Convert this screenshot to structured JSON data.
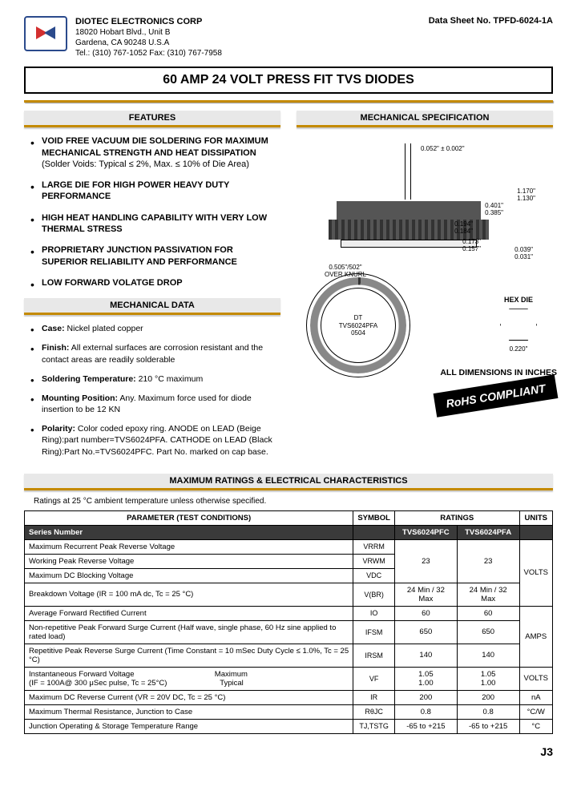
{
  "company": {
    "name": "DIOTEC ELECTRONICS CORP",
    "addr1": "18020 Hobart Blvd., Unit B",
    "addr2": "Gardena, CA 90248 U.S.A",
    "contact": "Tel.: (310) 767-1052  Fax: (310) 767-7958"
  },
  "sheet_no": "Data Sheet No. TPFD-6024-1A",
  "title": "60 AMP 24 VOLT PRESS FIT TVS DIODES",
  "section_features": "FEATURES",
  "section_mechspec": "MECHANICAL SPECIFICATION",
  "section_mechdata": "MECHANICAL DATA",
  "section_maxratings": "MAXIMUM RATINGS & ELECTRICAL CHARACTERISTICS",
  "features": [
    {
      "title": "VOID FREE VACUUM DIE SOLDERING FOR MAXIMUM MECHANICAL STRENGTH AND HEAT DISSIPATION",
      "sub": "(Solder Voids: Typical ≤ 2%, Max. ≤ 10% of Die Area)"
    },
    {
      "title": "LARGE DIE FOR HIGH POWER HEAVY DUTY PERFORMANCE",
      "sub": ""
    },
    {
      "title": "HIGH HEAT HANDLING CAPABILITY WITH VERY LOW THERMAL STRESS",
      "sub": ""
    },
    {
      "title": "PROPRIETARY JUNCTION PASSIVATION FOR SUPERIOR RELIABILITY AND PERFORMANCE",
      "sub": ""
    },
    {
      "title": "LOW FORWARD VOLATGE DROP",
      "sub": ""
    }
  ],
  "mechdata": [
    {
      "label": "Case:",
      "text": " Nickel plated copper"
    },
    {
      "label": "Finish:",
      "text": " All external surfaces are corrosion resistant and the contact areas are readily solderable"
    },
    {
      "label": "Soldering Temperature:",
      "text": " 210 °C maximum"
    },
    {
      "label": "Mounting Position:",
      "text": " Any. Maximum force used for diode insertion to be 12 KN"
    },
    {
      "label": "Polarity:",
      "text": " Color coded epoxy ring. ANODE on LEAD (Beige Ring):part number=TVS6024PFA. CATHODE on LEAD (Black Ring):Part No.=TVS6024PFC. Part No. marked on cap base."
    }
  ],
  "diagram": {
    "lead_dia": "0.052\" ± 0.002\"",
    "height": "1.170\"\n1.130\"",
    "cap_h": "0.401\"\n0.385\"",
    "shoulder1": "0.194\"\n0.184\"",
    "shoulder2": "0.173\"\n0.157\"",
    "base": "0.039\"\n0.031\"",
    "knurl_dia": "0.505\"/502\"\nOVER KNURL",
    "marking": "DT\nTVS6024PFA\n0504",
    "hex_label": "HEX DIE",
    "hex_dim": "0.220\"",
    "all_dims": "ALL DIMENSIONS IN INCHES",
    "rohs": "RoHS COMPLIANT"
  },
  "ratings_note": "Ratings at 25 °C ambient temperature unless otherwise specified.",
  "table": {
    "hdr_param": "PARAMETER (TEST CONDITIONS)",
    "hdr_symbol": "SYMBOL",
    "hdr_ratings": "RATINGS",
    "hdr_units": "UNITS",
    "series_label": "Series Number",
    "col1": "TVS6024PFC",
    "col2": "TVS6024PFA",
    "rows": [
      {
        "p": "Maximum Recurrent Peak Reverse Voltage",
        "s": "VRRM",
        "v1": "",
        "v2": "",
        "u": ""
      },
      {
        "p": "Working Peak Reverse Voltage",
        "s": "VRWM",
        "v1": "23",
        "v2": "23",
        "u": "VOLTS"
      },
      {
        "p": "Maximum DC Blocking Voltage",
        "s": "VDC",
        "v1": "",
        "v2": "",
        "u": ""
      },
      {
        "p": "Breakdown Voltage (IR = 100 mA dc, Tc = 25 °C)",
        "s": "V(BR)",
        "v1": "24 Min / 32 Max",
        "v2": "24 Min / 32 Max",
        "u": ""
      },
      {
        "p": "Average Forward Rectified Current",
        "s": "IO",
        "v1": "60",
        "v2": "60",
        "u": ""
      },
      {
        "p": "Non-repetitive Peak Forward Surge Current (Half wave, single phase, 60 Hz sine applied to rated load)",
        "s": "IFSM",
        "v1": "650",
        "v2": "650",
        "u": "AMPS"
      },
      {
        "p": "Repetitive Peak Reverse Surge Current (Time Constant = 10 mSec Duty Cycle ≤ 1.0%, Tc = 25 °C)",
        "s": "IRSM",
        "v1": "140",
        "v2": "140",
        "u": ""
      },
      {
        "p": "Instantaneous Forward Voltage                                      Maximum\n(IF = 100A@ 300 μSec pulse, Tc = 25°C)                         Typical",
        "s": "VF",
        "v1": "1.05\n1.00",
        "v2": "1.05\n1.00",
        "u": "VOLTS"
      },
      {
        "p": "Maximum DC Reverse Current (VR = 20V DC, Tc = 25 °C)",
        "s": "IR",
        "v1": "200",
        "v2": "200",
        "u": "nA"
      },
      {
        "p": "Maximum Thermal Resistance, Junction to Case",
        "s": "RθJC",
        "v1": "0.8",
        "v2": "0.8",
        "u": "°C/W"
      },
      {
        "p": "Junction Operating & Storage Temperature Range",
        "s": "TJ,TSTG",
        "v1": "-65 to +215",
        "v2": "-65 to +215",
        "u": "°C"
      }
    ]
  },
  "page_no": "J3"
}
